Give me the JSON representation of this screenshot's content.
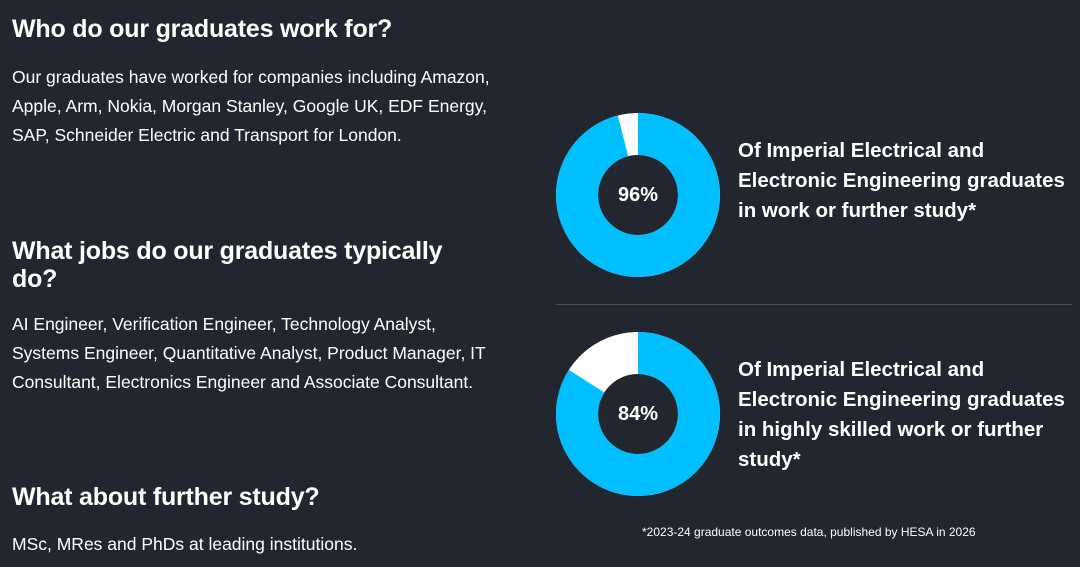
{
  "sections": {
    "who": {
      "heading": "Who do our graduates work for?",
      "body": "Our graduates have worked for companies including Amazon, Apple, Arm, Nokia, Morgan Stanley, Google UK, EDF Energy, SAP, Schneider Electric and Transport for London."
    },
    "jobs": {
      "heading": "What jobs do our graduates typically do?",
      "body": "AI Engineer, Verification Engineer, Technology Analyst, Systems Engineer, Quantitative Analyst, Product Manager, IT Consultant, Electronics Engineer and Associate Consultant."
    },
    "study": {
      "heading": "What about further study?",
      "body": "MSc, MRes and PhDs at leading institutions."
    }
  },
  "stats": [
    {
      "value_label": "96%",
      "value": 96,
      "description": "Of Imperial Electrical and Electronic Engineering graduates in work or further study*"
    },
    {
      "value_label": "84%",
      "value": 84,
      "description": "Of Imperial Electrical and Electronic Engineering graduates in highly skilled work or further study*"
    }
  ],
  "footnote": "*2023-24 graduate outcomes data, published by HESA in 2026",
  "colors": {
    "background": "#22262f",
    "accent": "#00bfff",
    "ring_remainder": "#ffffff",
    "text": "#ffffff"
  }
}
